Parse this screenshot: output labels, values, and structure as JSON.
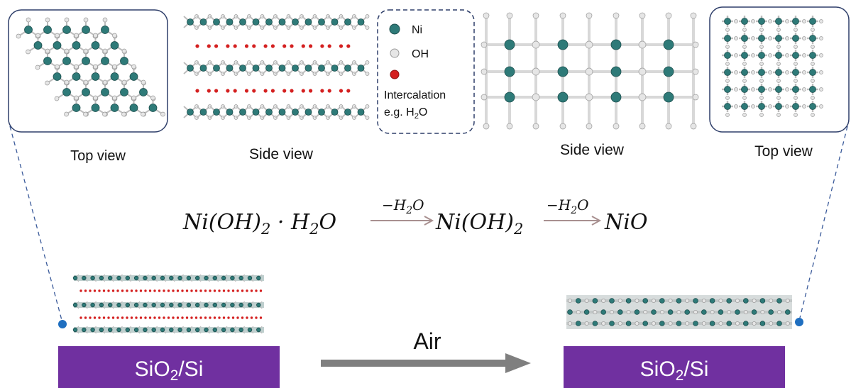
{
  "labels": {
    "top_view_left": "Top view",
    "side_view_left": "Side view",
    "side_view_right": "Side view",
    "top_view_right": "Top view",
    "air": "Air"
  },
  "legend": {
    "ni": "Ni",
    "oh": "OH",
    "intercalation": "Intercalation",
    "example_prefix": "e.g. H",
    "example_sub": "2",
    "example_suffix": "O"
  },
  "equation": {
    "reactant_a": "Ni(OH)",
    "reactant_a_sub": "2",
    "reactant_b": " · H",
    "reactant_b_sub": "2",
    "reactant_b_end": "O",
    "arrow1_a": "−H",
    "arrow1_sub": "2",
    "arrow1_b": "O",
    "intermediate": "Ni(OH)",
    "intermediate_sub": "2",
    "arrow2_a": "−H",
    "arrow2_sub": "2",
    "arrow2_b": "O",
    "product": "NiO"
  },
  "substrate": {
    "left_main": "SiO",
    "left_sub": "2",
    "left_end": "/Si",
    "right_main": "SiO",
    "right_sub": "2",
    "right_end": "/Si"
  },
  "colors": {
    "ni_atom": "#2e7a78",
    "oh_atom": "#e6e6e6",
    "water": "#d42020",
    "substrate": "#7030a0",
    "frame": "#2f3f6a",
    "dashed_line": "#3a5a9a",
    "dot": "#1f6fc0",
    "air_arrow": "#7f7f7f",
    "reaction_arrow": "#a89090"
  }
}
